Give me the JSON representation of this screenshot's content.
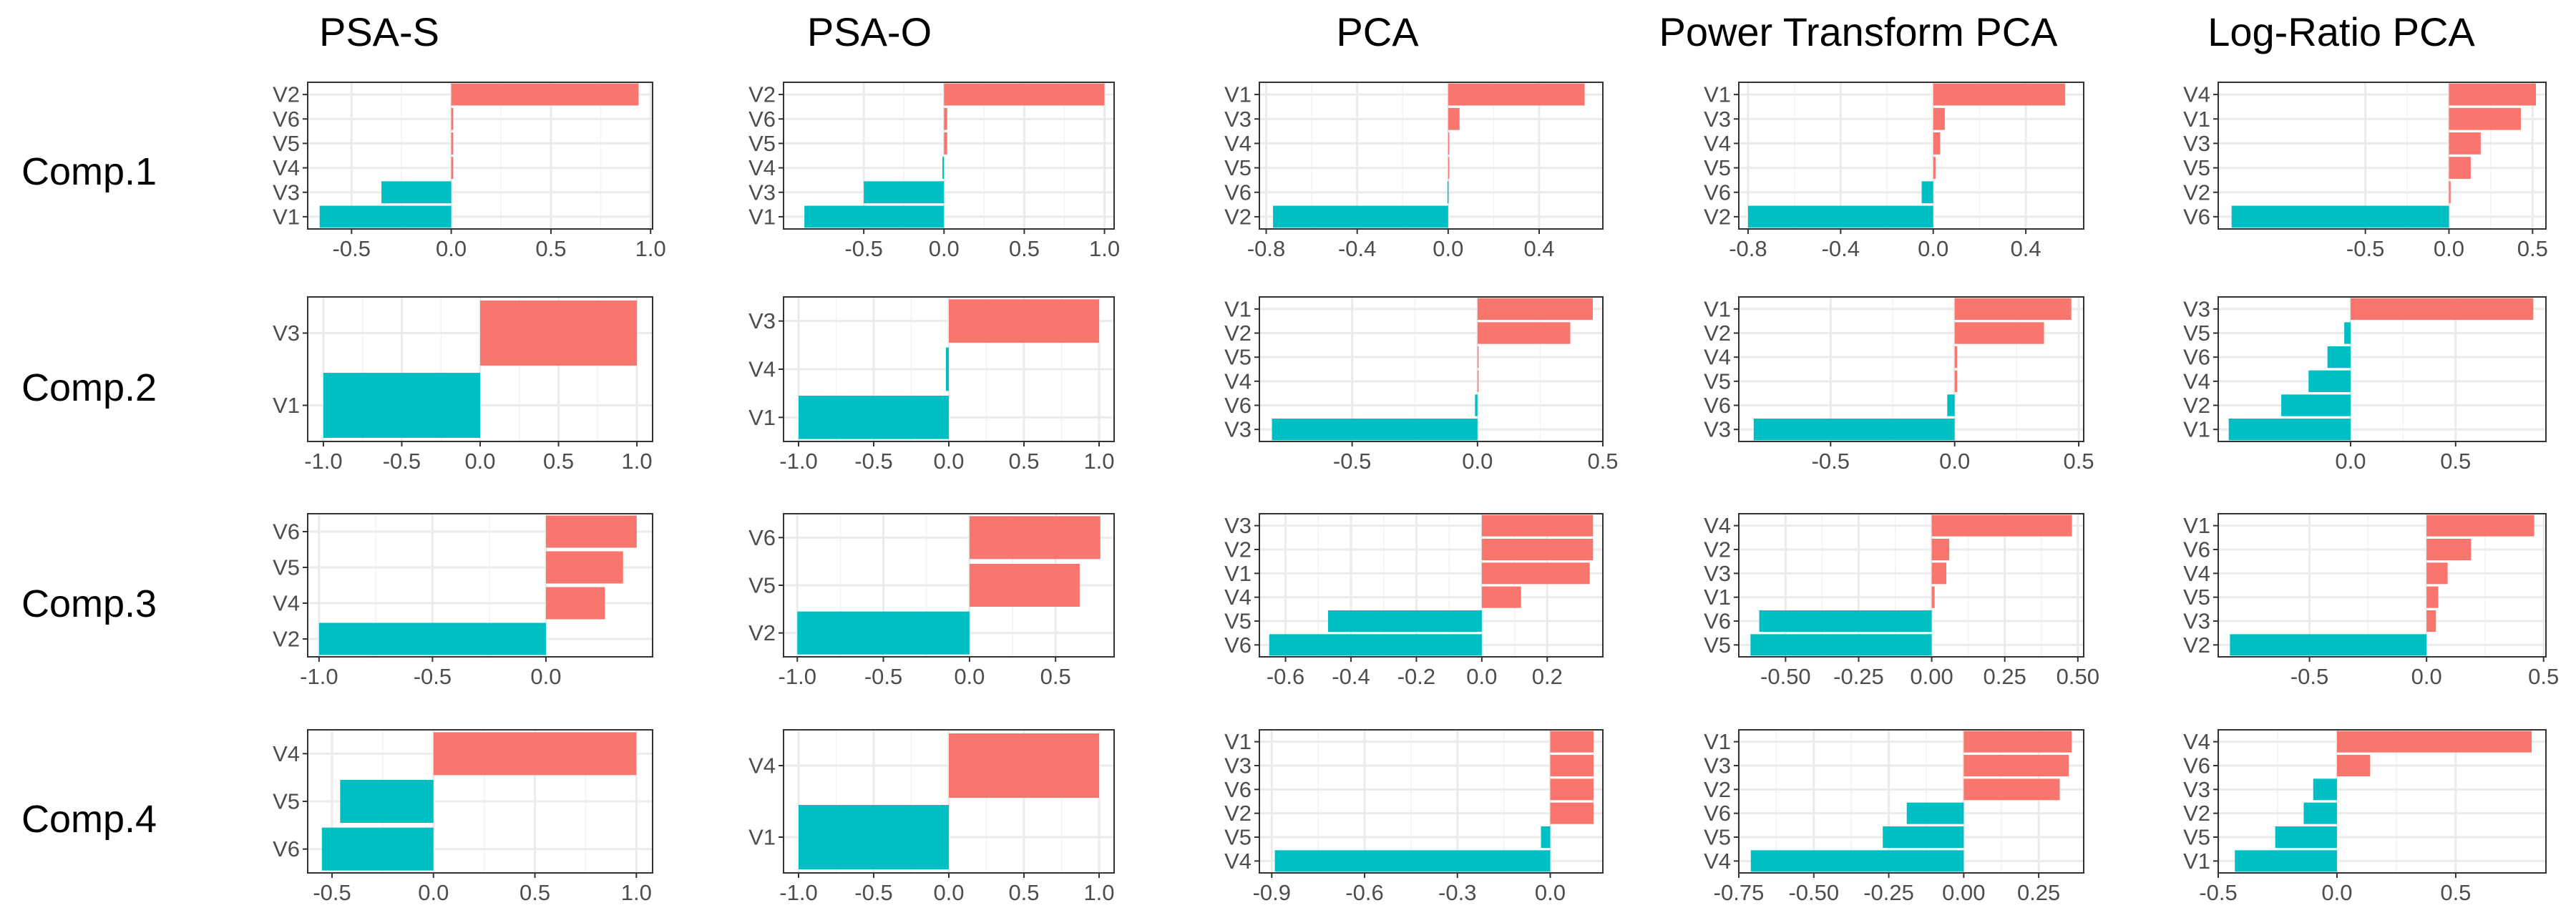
{
  "column_titles": [
    "PSA-S",
    "PSA-O",
    "PCA",
    "Power Transform PCA",
    "Log-Ratio PCA"
  ],
  "row_labels": [
    "Comp.1",
    "Comp.2",
    "Comp.3",
    "Comp.4"
  ],
  "colors": {
    "positive": "#F8766D",
    "negative": "#00BFC4"
  },
  "chart_data": [
    {
      "type": "bar",
      "orientation": "horizontal",
      "column": "PSA-S",
      "row": "Comp.1",
      "categories": [
        "V2",
        "V6",
        "V5",
        "V4",
        "V3",
        "V1"
      ],
      "values": [
        0.94,
        0.01,
        0.01,
        0.01,
        -0.35,
        -0.66
      ],
      "xlim": [
        -0.72,
        1.01
      ],
      "xticks": [
        -0.5,
        0.0,
        0.5,
        1.0
      ],
      "xtick_labels": [
        "-0.5",
        "0.0",
        "0.5",
        "1.0"
      ]
    },
    {
      "type": "bar",
      "orientation": "horizontal",
      "column": "PSA-O",
      "row": "Comp.1",
      "categories": [
        "V2",
        "V6",
        "V5",
        "V4",
        "V3",
        "V1"
      ],
      "values": [
        1.0,
        0.02,
        0.02,
        -0.01,
        -0.5,
        -0.87
      ],
      "xlim": [
        -1.0,
        1.06
      ],
      "xticks": [
        -0.5,
        0.0,
        0.5,
        1.0
      ],
      "xtick_labels": [
        "-0.5",
        "0.0",
        "0.5",
        "1.0"
      ]
    },
    {
      "type": "bar",
      "orientation": "horizontal",
      "column": "PCA",
      "row": "Comp.1",
      "categories": [
        "V1",
        "V3",
        "V4",
        "V5",
        "V6",
        "V2"
      ],
      "values": [
        0.6,
        0.05,
        0.003,
        0.003,
        -0.003,
        -0.77
      ],
      "xlim": [
        -0.83,
        0.68
      ],
      "xticks": [
        -0.8,
        -0.4,
        0.0,
        0.4
      ],
      "xtick_labels": [
        "-0.8",
        "-0.4",
        "0.0",
        "0.4"
      ]
    },
    {
      "type": "bar",
      "orientation": "horizontal",
      "column": "Power Transform PCA",
      "row": "Comp.1",
      "categories": [
        "V1",
        "V3",
        "V4",
        "V5",
        "V6",
        "V2"
      ],
      "values": [
        0.57,
        0.05,
        0.03,
        0.01,
        -0.05,
        -0.8
      ],
      "xlim": [
        -0.84,
        0.65
      ],
      "xticks": [
        -0.8,
        -0.4,
        0.0,
        0.4
      ],
      "xtick_labels": [
        "-0.8",
        "-0.4",
        "0.0",
        "0.4"
      ]
    },
    {
      "type": "bar",
      "orientation": "horizontal",
      "column": "Log-Ratio PCA",
      "row": "Comp.1",
      "categories": [
        "V4",
        "V1",
        "V3",
        "V5",
        "V2",
        "V6"
      ],
      "values": [
        0.52,
        0.43,
        0.19,
        0.13,
        0.01,
        -1.3
      ],
      "xlim": [
        -1.38,
        0.58
      ],
      "xticks": [
        -0.5,
        0.0,
        0.5
      ],
      "xtick_labels": [
        "-0.5",
        "0.0",
        "0.5"
      ]
    },
    {
      "type": "bar",
      "orientation": "horizontal",
      "column": "PSA-S",
      "row": "Comp.2",
      "categories": [
        "V3",
        "V1"
      ],
      "values": [
        1.0,
        -1.0
      ],
      "xlim": [
        -1.1,
        1.1
      ],
      "xticks": [
        -1.0,
        -0.5,
        0.0,
        0.5,
        1.0
      ],
      "xtick_labels": [
        "-1.0",
        "-0.5",
        "0.0",
        "0.5",
        "1.0"
      ]
    },
    {
      "type": "bar",
      "orientation": "horizontal",
      "column": "PSA-O",
      "row": "Comp.2",
      "categories": [
        "V3",
        "V4",
        "V1"
      ],
      "values": [
        1.0,
        -0.02,
        -1.0
      ],
      "xlim": [
        -1.1,
        1.1
      ],
      "xticks": [
        -1.0,
        -0.5,
        0.0,
        0.5,
        1.0
      ],
      "xtick_labels": [
        "-1.0",
        "-0.5",
        "0.0",
        "0.5",
        "1.0"
      ]
    },
    {
      "type": "bar",
      "orientation": "horizontal",
      "column": "PCA",
      "row": "Comp.2",
      "categories": [
        "V1",
        "V2",
        "V5",
        "V4",
        "V6",
        "V3"
      ],
      "values": [
        0.46,
        0.37,
        0.003,
        0.003,
        -0.01,
        -0.82
      ],
      "xlim": [
        -0.87,
        0.5
      ],
      "xticks": [
        -0.5,
        0.0,
        0.5
      ],
      "xtick_labels": [
        "-0.5",
        "0.0",
        "0.5"
      ]
    },
    {
      "type": "bar",
      "orientation": "horizontal",
      "column": "Power Transform PCA",
      "row": "Comp.2",
      "categories": [
        "V1",
        "V2",
        "V4",
        "V5",
        "V6",
        "V3"
      ],
      "values": [
        0.47,
        0.36,
        0.01,
        0.01,
        -0.03,
        -0.81
      ],
      "xlim": [
        -0.87,
        0.52
      ],
      "xticks": [
        -0.5,
        0.0,
        0.5
      ],
      "xtick_labels": [
        "-0.5",
        "0.0",
        "0.5"
      ]
    },
    {
      "type": "bar",
      "orientation": "horizontal",
      "column": "Log-Ratio PCA",
      "row": "Comp.2",
      "categories": [
        "V3",
        "V5",
        "V6",
        "V4",
        "V2",
        "V1"
      ],
      "values": [
        0.87,
        -0.03,
        -0.11,
        -0.2,
        -0.33,
        -0.58
      ],
      "xlim": [
        -0.63,
        0.93
      ],
      "xticks": [
        0.0,
        0.5
      ],
      "xtick_labels": [
        "0.0",
        "0.5"
      ]
    },
    {
      "type": "bar",
      "orientation": "horizontal",
      "column": "PSA-S",
      "row": "Comp.3",
      "categories": [
        "V6",
        "V5",
        "V4",
        "V2"
      ],
      "values": [
        0.4,
        0.34,
        0.26,
        -1.0
      ],
      "xlim": [
        -1.05,
        0.47
      ],
      "xticks": [
        -1.0,
        -0.5,
        0.0
      ],
      "xtick_labels": [
        "-1.0",
        "-0.5",
        "0.0"
      ]
    },
    {
      "type": "bar",
      "orientation": "horizontal",
      "column": "PSA-O",
      "row": "Comp.3",
      "categories": [
        "V6",
        "V5",
        "V2"
      ],
      "values": [
        0.76,
        0.64,
        -1.0
      ],
      "xlim": [
        -1.08,
        0.84
      ],
      "xticks": [
        -1.0,
        -0.5,
        0.0,
        0.5
      ],
      "xtick_labels": [
        "-1.0",
        "-0.5",
        "0.0",
        "0.5"
      ]
    },
    {
      "type": "bar",
      "orientation": "horizontal",
      "column": "PCA",
      "row": "Comp.3",
      "categories": [
        "V3",
        "V2",
        "V1",
        "V4",
        "V5",
        "V6"
      ],
      "values": [
        0.34,
        0.34,
        0.33,
        0.12,
        -0.47,
        -0.65
      ],
      "xlim": [
        -0.68,
        0.37
      ],
      "xticks": [
        -0.6,
        -0.4,
        -0.2,
        0.0,
        0.2
      ],
      "xtick_labels": [
        "-0.6",
        "-0.4",
        "-0.2",
        "0.0",
        "0.2"
      ]
    },
    {
      "type": "bar",
      "orientation": "horizontal",
      "column": "Power Transform PCA",
      "row": "Comp.3",
      "categories": [
        "V4",
        "V2",
        "V3",
        "V1",
        "V6",
        "V5"
      ],
      "values": [
        0.48,
        0.06,
        0.05,
        0.01,
        -0.59,
        -0.62
      ],
      "xlim": [
        -0.66,
        0.52
      ],
      "xticks": [
        -0.5,
        -0.25,
        0.0,
        0.25,
        0.5
      ],
      "xtick_labels": [
        "-0.50",
        "-0.25",
        "0.00",
        "0.25",
        "0.50"
      ]
    },
    {
      "type": "bar",
      "orientation": "horizontal",
      "column": "Log-Ratio PCA",
      "row": "Comp.3",
      "categories": [
        "V1",
        "V6",
        "V4",
        "V5",
        "V3",
        "V2"
      ],
      "values": [
        0.46,
        0.19,
        0.09,
        0.05,
        0.04,
        -0.84
      ],
      "xlim": [
        -0.89,
        0.51
      ],
      "xticks": [
        -0.5,
        0.0,
        0.5
      ],
      "xtick_labels": [
        "-0.5",
        "0.0",
        "0.5"
      ]
    },
    {
      "type": "bar",
      "orientation": "horizontal",
      "column": "PSA-S",
      "row": "Comp.4",
      "categories": [
        "V4",
        "V5",
        "V6"
      ],
      "values": [
        1.0,
        -0.46,
        -0.55
      ],
      "xlim": [
        -0.62,
        1.08
      ],
      "xticks": [
        -0.5,
        0.0,
        0.5,
        1.0
      ],
      "xtick_labels": [
        "-0.5",
        "0.0",
        "0.5",
        "1.0"
      ]
    },
    {
      "type": "bar",
      "orientation": "horizontal",
      "column": "PSA-O",
      "row": "Comp.4",
      "categories": [
        "V4",
        "V1"
      ],
      "values": [
        1.0,
        -1.0
      ],
      "xlim": [
        -1.1,
        1.1
      ],
      "xticks": [
        -1.0,
        -0.5,
        0.0,
        0.5,
        1.0
      ],
      "xtick_labels": [
        "-1.0",
        "-0.5",
        "0.0",
        "0.5",
        "1.0"
      ]
    },
    {
      "type": "bar",
      "orientation": "horizontal",
      "column": "PCA",
      "row": "Comp.4",
      "categories": [
        "V1",
        "V3",
        "V6",
        "V2",
        "V5",
        "V4"
      ],
      "values": [
        0.14,
        0.14,
        0.14,
        0.14,
        -0.03,
        -0.89
      ],
      "xlim": [
        -0.94,
        0.17
      ],
      "xticks": [
        -0.9,
        -0.6,
        -0.3,
        0.0
      ],
      "xtick_labels": [
        "-0.9",
        "-0.6",
        "-0.3",
        "0.0"
      ]
    },
    {
      "type": "bar",
      "orientation": "horizontal",
      "column": "Power Transform PCA",
      "row": "Comp.4",
      "categories": [
        "V1",
        "V3",
        "V2",
        "V6",
        "V5",
        "V4"
      ],
      "values": [
        0.36,
        0.35,
        0.32,
        -0.19,
        -0.27,
        -0.71
      ],
      "xlim": [
        -0.75,
        0.4
      ],
      "xticks": [
        -0.75,
        -0.5,
        -0.25,
        0.0,
        0.25
      ],
      "xtick_labels": [
        "-0.75",
        "-0.50",
        "-0.25",
        "0.00",
        "0.25"
      ]
    },
    {
      "type": "bar",
      "orientation": "horizontal",
      "column": "Log-Ratio PCA",
      "row": "Comp.4",
      "categories": [
        "V4",
        "V6",
        "V3",
        "V2",
        "V5",
        "V1"
      ],
      "values": [
        0.82,
        0.14,
        -0.1,
        -0.14,
        -0.26,
        -0.43
      ],
      "xlim": [
        -0.5,
        0.88
      ],
      "xticks": [
        -0.5,
        0.0,
        0.5
      ],
      "xtick_labels": [
        "-0.5",
        "0.0",
        "0.5"
      ]
    }
  ]
}
